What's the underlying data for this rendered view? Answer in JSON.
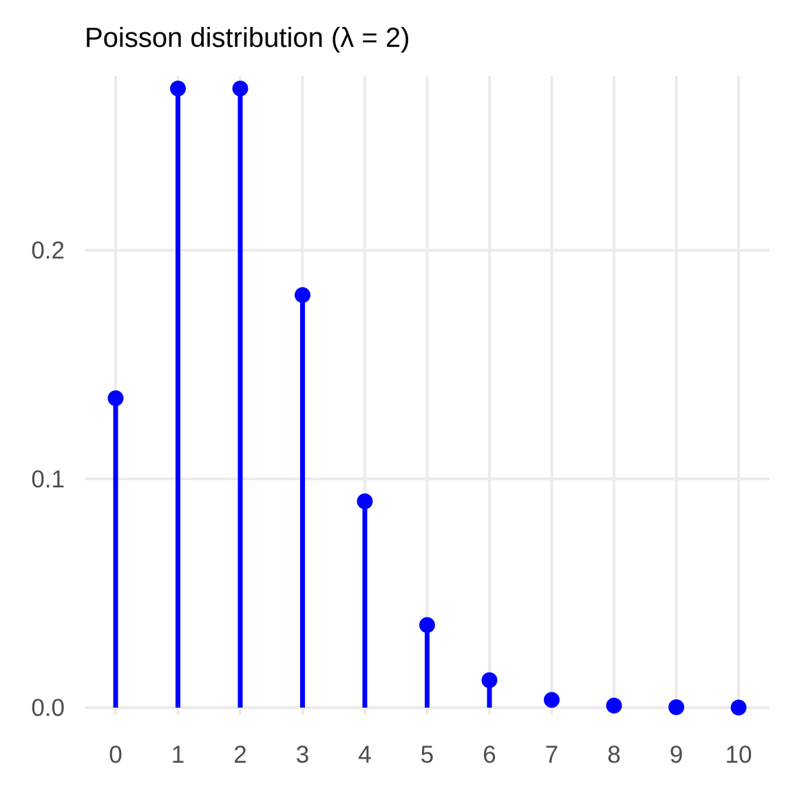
{
  "chart_data": {
    "type": "lollipop",
    "title": "Poisson distribution (λ = 2)",
    "xlabel": "",
    "ylabel": "",
    "x": [
      0,
      1,
      2,
      3,
      4,
      5,
      6,
      7,
      8,
      9,
      10
    ],
    "values": [
      0.1353,
      0.2707,
      0.2707,
      0.1804,
      0.0902,
      0.0361,
      0.012,
      0.0034,
      0.0009,
      0.0002,
      4e-05
    ],
    "x_ticks": [
      "0",
      "1",
      "2",
      "3",
      "4",
      "5",
      "6",
      "7",
      "8",
      "9",
      "10"
    ],
    "y_ticks": [
      "0.0",
      "0.1",
      "0.2"
    ],
    "y_tick_values": [
      0,
      0.1,
      0.2
    ],
    "xlim": [
      -0.5,
      10.5
    ],
    "ylim": [
      0,
      0.2707
    ],
    "grid": true,
    "legend": "none",
    "colors": {
      "series": "#0000ff",
      "grid": "#ebebeb",
      "tick_text": "#4d4d4d",
      "title": "#000000"
    }
  }
}
